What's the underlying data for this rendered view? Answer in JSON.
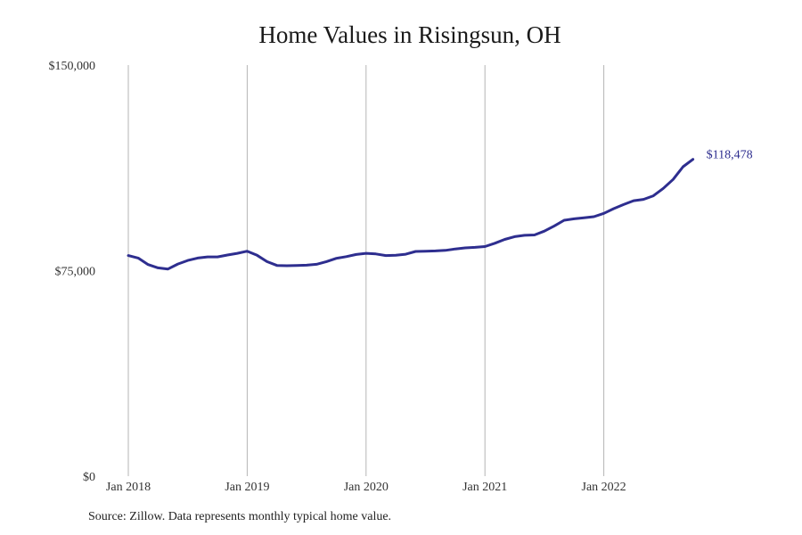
{
  "chart_data": {
    "type": "line",
    "title": "Home Values in Risingsun, OH",
    "xlabel": "",
    "ylabel": "",
    "ylim": [
      0,
      150000
    ],
    "xlim": [
      "2018-01",
      "2022-12"
    ],
    "y_ticks": [
      "$0",
      "$75,000",
      "$150,000"
    ],
    "y_tick_values": [
      0,
      75000,
      150000
    ],
    "x_ticks": [
      "Jan 2018",
      "Jan 2019",
      "Jan 2020",
      "Jan 2021",
      "Jan 2022"
    ],
    "x_tick_values": [
      "2018-01",
      "2019-01",
      "2020-01",
      "2021-01",
      "2022-01"
    ],
    "grid": "vertical lines at each January",
    "legend": "none",
    "end_label": "$118,478",
    "line_color": "#2e2e8f",
    "series": [
      {
        "x": [
          "2018-01",
          "2018-02",
          "2018-03",
          "2018-04",
          "2018-05",
          "2018-06",
          "2018-07",
          "2018-08",
          "2018-09",
          "2018-10",
          "2018-11",
          "2018-12",
          "2019-01",
          "2019-02",
          "2019-03",
          "2019-04",
          "2019-05",
          "2019-06",
          "2019-07",
          "2019-08",
          "2019-09",
          "2019-10",
          "2019-11",
          "2019-12",
          "2020-01",
          "2020-02",
          "2020-03",
          "2020-04",
          "2020-05",
          "2020-06",
          "2020-07",
          "2020-08",
          "2020-09",
          "2020-10",
          "2020-11",
          "2020-12",
          "2021-01",
          "2021-02",
          "2021-03",
          "2021-04",
          "2021-05",
          "2021-06",
          "2021-07",
          "2021-08",
          "2021-09",
          "2021-10",
          "2021-11",
          "2021-12",
          "2022-01",
          "2022-02",
          "2022-03",
          "2022-04",
          "2022-05",
          "2022-06",
          "2022-07",
          "2022-08",
          "2022-09",
          "2022-10"
        ],
        "values": [
          80500,
          79600,
          77200,
          76000,
          75600,
          77400,
          78700,
          79600,
          80000,
          80000,
          80700,
          81300,
          82100,
          80600,
          78300,
          76900,
          76800,
          76900,
          77000,
          77300,
          78300,
          79500,
          80100,
          80900,
          81300,
          81100,
          80500,
          80600,
          81000,
          82000,
          82100,
          82200,
          82400,
          82900,
          83300,
          83500,
          83800,
          85000,
          86400,
          87400,
          87900,
          88000,
          89400,
          91300,
          93400,
          93900,
          94300,
          94700,
          95900,
          97600,
          99100,
          100500,
          101000,
          102300,
          105000,
          108300,
          112900,
          115600
        ]
      }
    ]
  },
  "source_note": "Source: Zillow. Data represents monthly typical home value."
}
